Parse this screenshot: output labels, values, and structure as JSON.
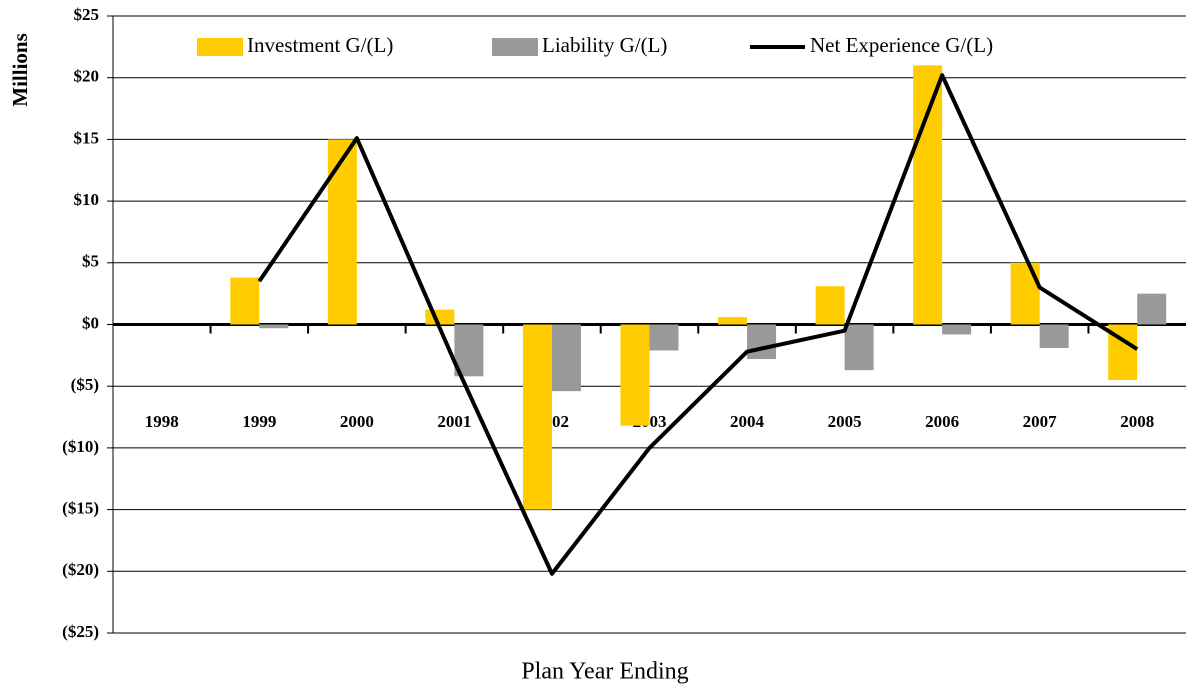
{
  "chart_data": {
    "type": "bar_line",
    "x_label": "Plan Year Ending",
    "y_label": "Millions",
    "categories": [
      "1998",
      "1999",
      "2000",
      "2001",
      "2002",
      "2003",
      "2004",
      "2005",
      "2006",
      "2007",
      "2008"
    ],
    "series": [
      {
        "name": "Investment G/(L)",
        "color": "#ffcc00",
        "kind": "bar",
        "values": [
          null,
          3.8,
          15,
          1.2,
          -15,
          -8.2,
          0.6,
          3.1,
          21,
          5,
          -4.5
        ]
      },
      {
        "name": "Liability G/(L)",
        "color": "#999999",
        "kind": "bar",
        "values": [
          null,
          -0.3,
          0,
          -4.2,
          -5.4,
          -2.1,
          -2.8,
          -3.7,
          -0.8,
          -1.9,
          2.5
        ]
      },
      {
        "name": "Net Experience G/(L)",
        "color": "#000000",
        "kind": "line",
        "values": [
          null,
          3.5,
          15.1,
          -3,
          -20.2,
          -10,
          -2.2,
          -0.5,
          20.2,
          3,
          -2
        ]
      }
    ],
    "ylim": [
      -25,
      25
    ],
    "yticks": [
      {
        "value": 25,
        "label": "$25"
      },
      {
        "value": 20,
        "label": "$20"
      },
      {
        "value": 15,
        "label": "$15"
      },
      {
        "value": 10,
        "label": "$10"
      },
      {
        "value": 5,
        "label": "$5"
      },
      {
        "value": 0,
        "label": "$0"
      },
      {
        "value": -5,
        "label": "($5)"
      },
      {
        "value": -10,
        "label": "($10)"
      },
      {
        "value": -15,
        "label": "($15)"
      },
      {
        "value": -20,
        "label": "($20)"
      },
      {
        "value": -25,
        "label": "($25)"
      }
    ],
    "grid": true,
    "legend": "top"
  }
}
